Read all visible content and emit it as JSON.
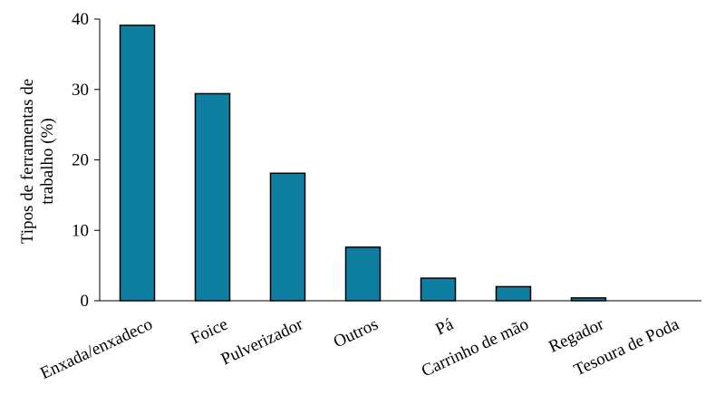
{
  "chart_data": {
    "type": "bar",
    "categories": [
      "Enxada/enxadeco",
      "Foice",
      "Pulverizador",
      "Outros",
      "Pá",
      "Carrinho de mão",
      "Regador",
      "Tesoura de Poda"
    ],
    "values": [
      39.1,
      29.4,
      18.1,
      7.6,
      3.2,
      2.0,
      0.4,
      0.0
    ],
    "ylabel_lines": [
      "Tipos de ferramentas de",
      "trabalho (%)"
    ],
    "yticks": [
      "0",
      "10",
      "20",
      "30",
      "40"
    ],
    "ylim": [
      0,
      40
    ],
    "grid": false,
    "bar_color": "#0e7fa0"
  }
}
